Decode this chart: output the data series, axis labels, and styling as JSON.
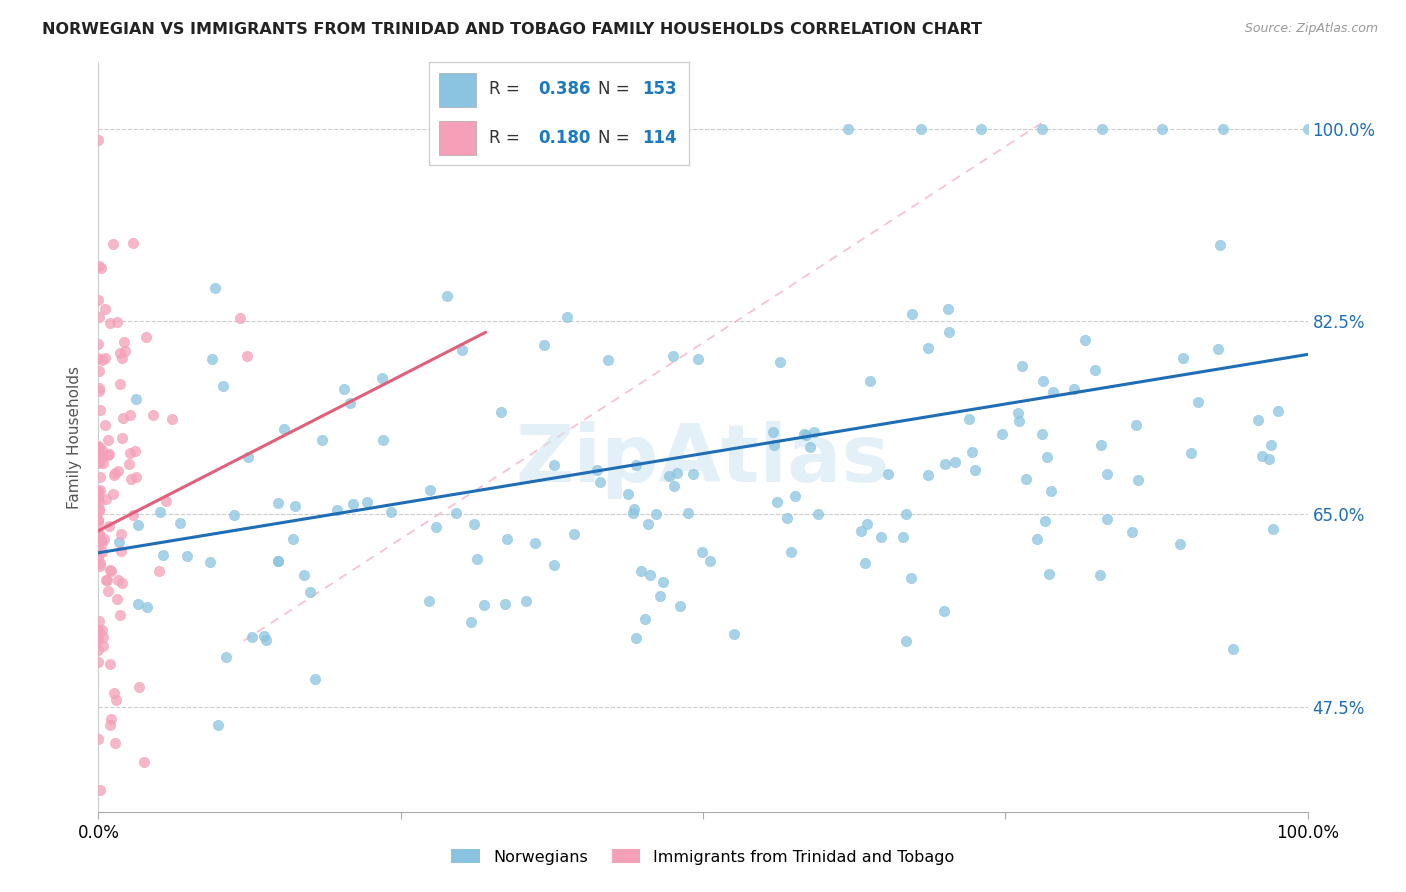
{
  "title": "NORWEGIAN VS IMMIGRANTS FROM TRINIDAD AND TOBAGO FAMILY HOUSEHOLDS CORRELATION CHART",
  "source": "Source: ZipAtlas.com",
  "ylabel": "Family Households",
  "blue_color": "#8ac4e0",
  "pink_color": "#f4a0b8",
  "blue_line_color": "#1f6eb5",
  "pink_line_color": "#e0607a",
  "pink_dashed_color": "#f4b8c8",
  "legend_color": "#1a7abf",
  "legend_text_color": "#333333",
  "watermark": "ZipAtlas",
  "ytick_labels": [
    "47.5%",
    "65.0%",
    "82.5%",
    "100.0%"
  ],
  "ytick_values": [
    0.475,
    0.65,
    0.825,
    1.0
  ],
  "xlim": [
    0.0,
    1.0
  ],
  "ylim": [
    0.38,
    1.06
  ]
}
